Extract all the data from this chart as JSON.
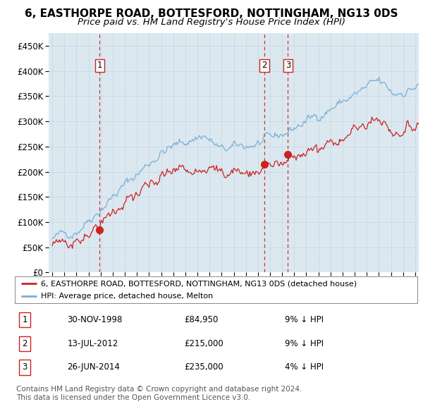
{
  "title": "6, EASTHORPE ROAD, BOTTESFORD, NOTTINGHAM, NG13 0DS",
  "subtitle": "Price paid vs. HM Land Registry's House Price Index (HPI)",
  "ylabel_ticks": [
    "£0",
    "£50K",
    "£100K",
    "£150K",
    "£200K",
    "£250K",
    "£300K",
    "£350K",
    "£400K",
    "£450K"
  ],
  "ytick_vals": [
    0,
    50000,
    100000,
    150000,
    200000,
    250000,
    300000,
    350000,
    400000,
    450000
  ],
  "ylim": [
    0,
    475000
  ],
  "xlim_start": 1994.7,
  "xlim_end": 2025.3,
  "hpi_color": "#7ab0d4",
  "property_color": "#cc2222",
  "sale_points": [
    {
      "date": 1998.917,
      "price": 84950,
      "label": "1"
    },
    {
      "date": 2012.533,
      "price": 215000,
      "label": "2"
    },
    {
      "date": 2014.483,
      "price": 235000,
      "label": "3"
    }
  ],
  "vline_color": "#cc2222",
  "grid_color": "#c8d8e8",
  "bg_color": "#ffffff",
  "chart_bg": "#dce8f0",
  "legend_property": "6, EASTHORPE ROAD, BOTTESFORD, NOTTINGHAM, NG13 0DS (detached house)",
  "legend_hpi": "HPI: Average price, detached house, Melton",
  "table_rows": [
    [
      "1",
      "30-NOV-1998",
      "£84,950",
      "9% ↓ HPI"
    ],
    [
      "2",
      "13-JUL-2012",
      "£215,000",
      "9% ↓ HPI"
    ],
    [
      "3",
      "26-JUN-2014",
      "£235,000",
      "4% ↓ HPI"
    ]
  ],
  "footnote": "Contains HM Land Registry data © Crown copyright and database right 2024.\nThis data is licensed under the Open Government Licence v3.0.",
  "title_fontsize": 11,
  "subtitle_fontsize": 9.5,
  "tick_fontsize": 8.5,
  "legend_fontsize": 8,
  "table_fontsize": 8.5,
  "footnote_fontsize": 7.5
}
